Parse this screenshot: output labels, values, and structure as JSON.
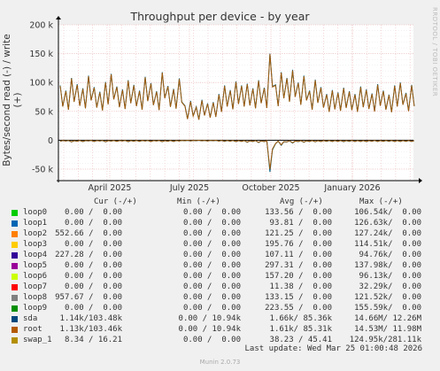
{
  "chart_data": {
    "type": "line",
    "title": "Throughput per device - by year",
    "ylabel": "Bytes/second read (-) / write (+)",
    "ylim": [
      -70000,
      200000
    ],
    "y_ticks": [
      {
        "value": 200000,
        "label": "200 k"
      },
      {
        "value": 150000,
        "label": "150 k"
      },
      {
        "value": 100000,
        "label": "100 k"
      },
      {
        "value": 50000,
        "label": "50 k"
      },
      {
        "value": 0,
        "label": "0"
      },
      {
        "value": -50000,
        "label": "-50 k"
      }
    ],
    "x_ticks": [
      "April 2025",
      "July 2025",
      "October 2025",
      "January 2026"
    ],
    "grid": true,
    "series": [
      {
        "name": "sda",
        "color": "#005f7f",
        "write_values": [
          95000,
          86000,
          108000,
          97000,
          90000,
          112000,
          92000,
          84000,
          101000,
          115000,
          93000,
          88000,
          104000,
          96000,
          86000,
          110000,
          99000,
          85000,
          118000,
          94000,
          89000,
          107000,
          60000,
          68000,
          58000,
          70000,
          64000,
          66000,
          80000,
          95000,
          87000,
          102000,
          95000,
          98000,
          90000,
          104000,
          91000,
          150000,
          96000,
          118000,
          108000,
          122000,
          100000,
          112000,
          86000,
          105000,
          92000,
          80000,
          87000,
          83000,
          91000,
          85000,
          80000,
          93000,
          88000,
          81000,
          97000,
          86000,
          79000,
          95000,
          100000,
          82000,
          96000
        ],
        "read_values": [
          -2000,
          -1500,
          -3000,
          -1800,
          -2500,
          -1200,
          -2200,
          -1500,
          -2800,
          -1600,
          -2100,
          -1400,
          -2600,
          -1800,
          -2000,
          -1500,
          -2400,
          -1300,
          -2700,
          -1900,
          -2200,
          -1400,
          -1000,
          -1200,
          -900,
          -1100,
          -1300,
          -1000,
          -1500,
          -2000,
          -1800,
          -2500,
          -2100,
          -3500,
          -2200,
          -4000,
          -2500,
          -55000,
          -6000,
          -9000,
          -3000,
          -5000,
          -2500,
          -3500,
          -2200,
          -2800,
          -2400,
          -2000,
          -2300,
          -2100,
          -2600,
          -2000,
          -2400,
          -2200,
          -2500,
          -1900,
          -2300,
          -2100,
          -2000,
          -2400,
          -2200,
          -2100,
          -2300
        ]
      },
      {
        "name": "root",
        "color": "#a05a0a",
        "write_values": [
          94000,
          85000,
          107000,
          96000,
          89000,
          111000,
          91000,
          83000,
          100000,
          114000,
          92000,
          87000,
          103000,
          95000,
          85000,
          109000,
          98000,
          84000,
          117000,
          93000,
          88000,
          106000,
          59000,
          67000,
          57000,
          69000,
          63000,
          65000,
          79000,
          94000,
          86000,
          101000,
          94000,
          97000,
          89000,
          103000,
          90000,
          149000,
          95000,
          117000,
          107000,
          121000,
          99000,
          111000,
          85000,
          104000,
          91000,
          79000,
          86000,
          82000,
          90000,
          84000,
          79000,
          92000,
          87000,
          80000,
          96000,
          85000,
          78000,
          94000,
          99000,
          81000,
          95000
        ],
        "read_values": [
          -1800,
          -1400,
          -2800,
          -1700,
          -2300,
          -1100,
          -2000,
          -1400,
          -2600,
          -1500,
          -2000,
          -1300,
          -2400,
          -1700,
          -1900,
          -1400,
          -2200,
          -1200,
          -2500,
          -1800,
          -2000,
          -1300,
          -900,
          -1100,
          -800,
          -1000,
          -1200,
          -900,
          -1400,
          -1800,
          -1700,
          -2300,
          -2000,
          -3200,
          -2000,
          -3700,
          -2300,
          -50000,
          -5500,
          -8000,
          -2800,
          -4500,
          -2300,
          -3200,
          -2000,
          -2600,
          -2200,
          -1800,
          -2100,
          -1900,
          -2400,
          -1800,
          -2200,
          -2000,
          -2300,
          -1700,
          -2100,
          -1900,
          -1800,
          -2200,
          -2000,
          -1900,
          -2100
        ]
      }
    ],
    "legend": {
      "headers": [
        "Cur (-/+)",
        "Min (-/+)",
        "Avg (-/+)",
        "Max (-/+)"
      ],
      "rows": [
        {
          "name": "loop0",
          "color": "#00cc00",
          "cur": "0.00 /  0.00",
          "min": "0.00 /  0.00",
          "avg": "133.56 /  0.00",
          "max": "106.54k/  0.00"
        },
        {
          "name": "loop1",
          "color": "#0066b3",
          "cur": "0.00 /  0.00",
          "min": "0.00 /  0.00",
          "avg": "93.81 /  0.00",
          "max": "126.63k/  0.00"
        },
        {
          "name": "loop2",
          "color": "#ff8000",
          "cur": "552.66 /  0.00",
          "min": "0.00 /  0.00",
          "avg": "121.25 /  0.00",
          "max": "127.24k/  0.00"
        },
        {
          "name": "loop3",
          "color": "#ffcc00",
          "cur": "0.00 /  0.00",
          "min": "0.00 /  0.00",
          "avg": "195.76 /  0.00",
          "max": "114.51k/  0.00"
        },
        {
          "name": "loop4",
          "color": "#330099",
          "cur": "227.28 /  0.00",
          "min": "0.00 /  0.00",
          "avg": "107.11 /  0.00",
          "max": "94.76k/  0.00"
        },
        {
          "name": "loop5",
          "color": "#990099",
          "cur": "0.00 /  0.00",
          "min": "0.00 /  0.00",
          "avg": "297.31 /  0.00",
          "max": "137.98k/  0.00"
        },
        {
          "name": "loop6",
          "color": "#ccff00",
          "cur": "0.00 /  0.00",
          "min": "0.00 /  0.00",
          "avg": "157.20 /  0.00",
          "max": "96.13k/  0.00"
        },
        {
          "name": "loop7",
          "color": "#ff0000",
          "cur": "0.00 /  0.00",
          "min": "0.00 /  0.00",
          "avg": "11.38 /  0.00",
          "max": "32.29k/  0.00"
        },
        {
          "name": "loop8",
          "color": "#808080",
          "cur": "957.67 /  0.00",
          "min": "0.00 /  0.00",
          "avg": "133.15 /  0.00",
          "max": "121.52k/  0.00"
        },
        {
          "name": "loop9",
          "color": "#008f00",
          "cur": "0.00 /  0.00",
          "min": "0.00 /  0.00",
          "avg": "223.55 /  0.00",
          "max": "155.59k/  0.00"
        },
        {
          "name": "sda",
          "color": "#00487d",
          "cur": "1.14k/103.48k",
          "min": "0.00 / 10.94k",
          "avg": "1.66k/ 85.36k",
          "max": "14.66M/ 12.26M"
        },
        {
          "name": "root",
          "color": "#b35a00",
          "cur": "1.13k/103.46k",
          "min": "0.00 / 10.94k",
          "avg": "1.61k/ 85.31k",
          "max": "14.53M/ 11.98M"
        },
        {
          "name": "swap_1",
          "color": "#b38f00",
          "cur": "8.34 / 16.21",
          "min": "0.00 /  0.00",
          "avg": "38.23 / 45.41",
          "max": "124.95k/281.11k"
        }
      ]
    }
  },
  "side_label": "RRDTOOL / TOBI OETIKER",
  "last_update": "Last update: Wed Mar 25 01:00:48 2026",
  "footer": "Munin 2.0.73"
}
